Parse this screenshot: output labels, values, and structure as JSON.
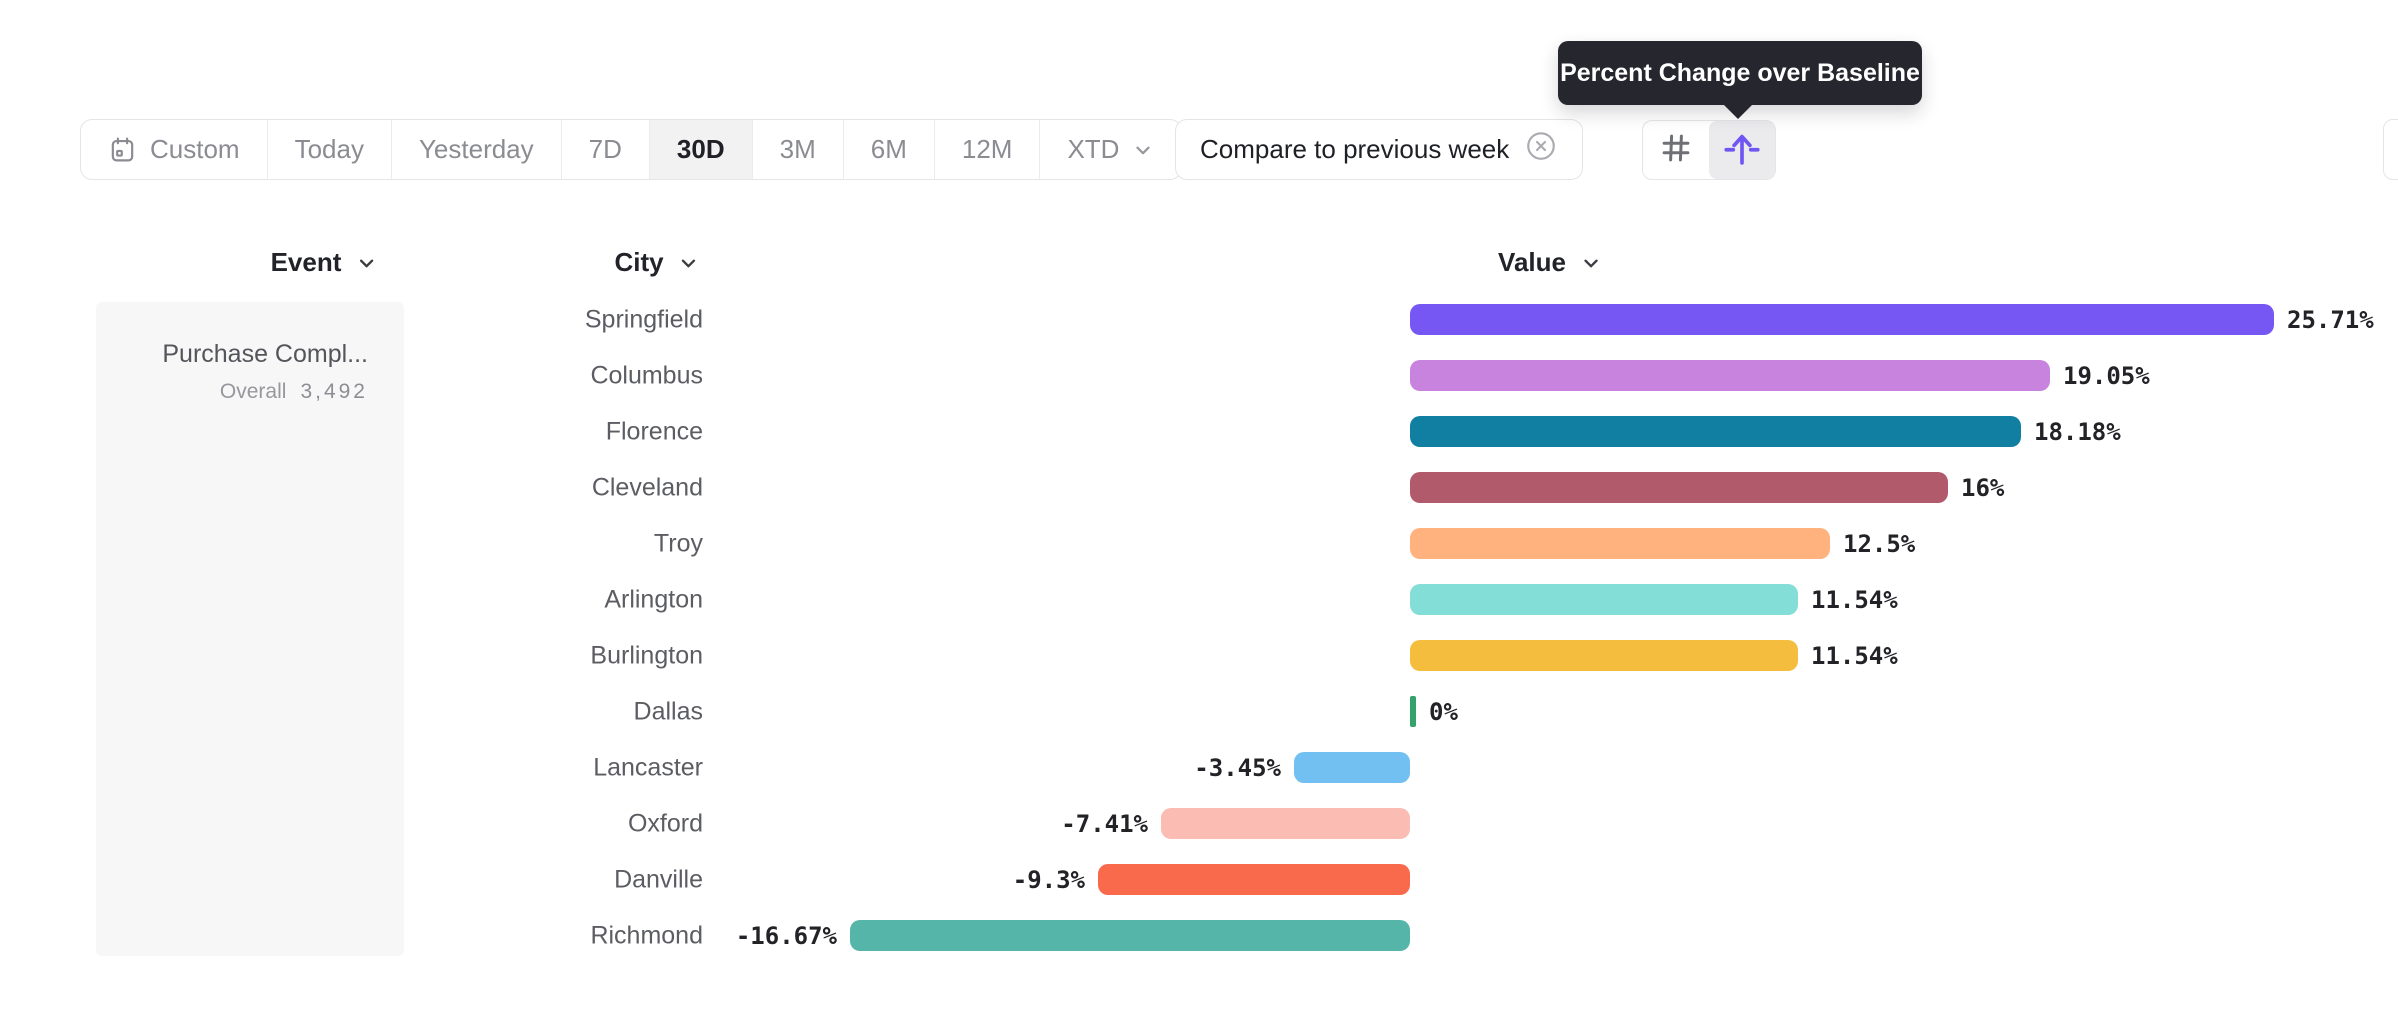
{
  "toolbar": {
    "date_ranges": [
      {
        "label": "Custom",
        "icon": "calendar-icon",
        "selected": false
      },
      {
        "label": "Today",
        "selected": false
      },
      {
        "label": "Yesterday",
        "selected": false
      },
      {
        "label": "7D",
        "selected": false
      },
      {
        "label": "30D",
        "selected": true
      },
      {
        "label": "3M",
        "selected": false
      },
      {
        "label": "6M",
        "selected": false
      },
      {
        "label": "12M",
        "selected": false
      },
      {
        "label": "XTD",
        "selected": false,
        "has_dropdown": true
      }
    ],
    "compare_label": "Compare to previous week",
    "icon_buttons": [
      {
        "name": "grid-icon",
        "active": false
      },
      {
        "name": "baseline-arrow-icon",
        "active": true
      }
    ]
  },
  "tooltip": {
    "text": "Percent Change over Baseline"
  },
  "columns": {
    "event": "Event",
    "city": "City",
    "value": "Value"
  },
  "event_card": {
    "title": "Purchase Compl...",
    "overall_label": "Overall",
    "overall_value": "3,492"
  },
  "chart_data": {
    "type": "bar",
    "orientation": "horizontal",
    "title": "Percent Change over Baseline",
    "value_unit": "%",
    "baseline": 0,
    "xlim": [
      -16.67,
      25.71
    ],
    "categories": [
      "Springfield",
      "Columbus",
      "Florence",
      "Cleveland",
      "Troy",
      "Arlington",
      "Burlington",
      "Dallas",
      "Lancaster",
      "Oxford",
      "Danville",
      "Richmond"
    ],
    "values": [
      25.71,
      19.05,
      18.18,
      16,
      12.5,
      11.54,
      11.54,
      0,
      -3.45,
      -7.41,
      -9.3,
      -16.67
    ],
    "rows": [
      {
        "city": "Springfield",
        "value": 25.71,
        "label": "25.71%",
        "color": "#7757F4"
      },
      {
        "city": "Columbus",
        "value": 19.05,
        "label": "19.05%",
        "color": "#C883DE"
      },
      {
        "city": "Florence",
        "value": 18.18,
        "label": "18.18%",
        "color": "#117FA2"
      },
      {
        "city": "Cleveland",
        "value": 16,
        "label": "16%",
        "color": "#B05A6C"
      },
      {
        "city": "Troy",
        "value": 12.5,
        "label": "12.5%",
        "color": "#FFB27D"
      },
      {
        "city": "Arlington",
        "value": 11.54,
        "label": "11.54%",
        "color": "#82DED6"
      },
      {
        "city": "Burlington",
        "value": 11.54,
        "label": "11.54%",
        "color": "#F5BD3E"
      },
      {
        "city": "Dallas",
        "value": 0,
        "label": "0%",
        "color": "#34A26B"
      },
      {
        "city": "Lancaster",
        "value": -3.45,
        "label": "-3.45%",
        "color": "#72BFF2"
      },
      {
        "city": "Oxford",
        "value": -7.41,
        "label": "-7.41%",
        "color": "#FABCB3"
      },
      {
        "city": "Danville",
        "value": -9.3,
        "label": "-9.3%",
        "color": "#F9694C"
      },
      {
        "city": "Richmond",
        "value": -16.67,
        "label": "-16.67%",
        "color": "#55B5A8"
      }
    ]
  },
  "theme": {
    "tooltip_bg": "#26262e",
    "accent_purple": "#6f55f2",
    "selected_segment_bg": "#f2f2f3",
    "border": "#e5e5e8",
    "card_bg": "#f7f7f8",
    "positive_green": "#34A26B"
  }
}
